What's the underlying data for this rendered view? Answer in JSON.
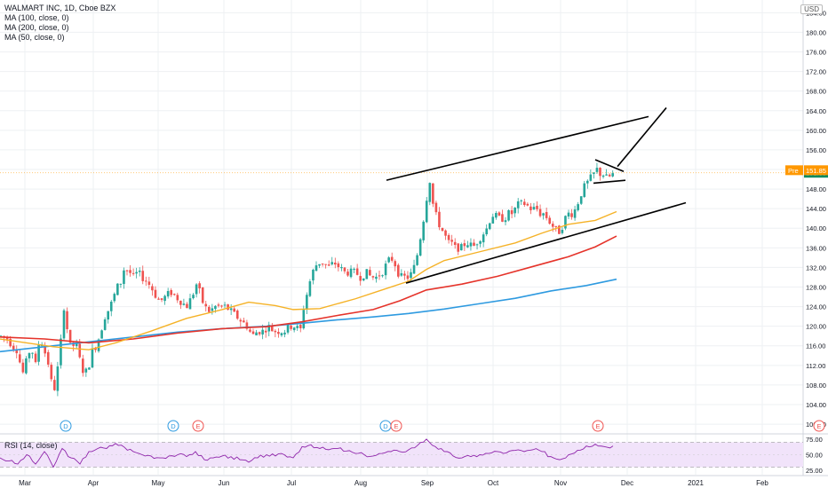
{
  "legend": {
    "title": "WALMART INC, 1D, Cboe BZX",
    "ma100": "MA (100, close, 0)",
    "ma200": "MA (200, close, 0)",
    "ma50": "MA (50, close, 0)"
  },
  "currency": "USD",
  "rsi_label": "RSI (14, close)",
  "colors": {
    "up": "#26a69a",
    "down": "#ef5350",
    "ma50": "#f5b227",
    "ma100": "#e5332a",
    "ma200": "#2e9ae0",
    "rsi": "#8e24aa",
    "rsi_band": "#f1e3fa",
    "pre": "#ff9800",
    "last": "#0e8a5f"
  },
  "chart_data": {
    "type": "candlestick",
    "title": "WALMART INC, 1D, Cboe BZX",
    "x_ticks": [
      "Mar",
      "Apr",
      "May",
      "Jun",
      "Jul",
      "Aug",
      "Sep",
      "Oct",
      "Nov",
      "Dec",
      "2021",
      "Feb"
    ],
    "y_ticks": [
      100,
      104,
      108,
      112,
      116,
      120,
      124,
      128,
      132,
      136,
      140,
      144,
      148,
      152,
      156,
      160,
      164,
      168,
      172,
      176,
      180,
      184
    ],
    "ylim": [
      98.2,
      186.6
    ],
    "last_price_label": "151.33",
    "last_price": 151.33,
    "pre_label": "Pre",
    "pre_price_label": "151.85",
    "pre_price": 151.85,
    "price_points": [
      [
        0,
        118
      ],
      [
        8,
        117.5
      ],
      [
        14,
        116
      ],
      [
        20,
        115
      ],
      [
        25,
        110
      ],
      [
        30,
        113
      ],
      [
        35,
        116
      ],
      [
        40,
        112
      ],
      [
        45,
        118
      ],
      [
        50,
        115
      ],
      [
        55,
        112
      ],
      [
        60,
        106
      ],
      [
        64,
        110
      ],
      [
        68,
        116
      ],
      [
        72,
        124
      ],
      [
        76,
        119
      ],
      [
        80,
        115
      ],
      [
        85,
        117
      ],
      [
        90,
        113
      ],
      [
        95,
        110
      ],
      [
        100,
        112
      ],
      [
        104,
        115
      ],
      [
        108,
        116
      ],
      [
        112,
        118
      ],
      [
        118,
        122
      ],
      [
        124,
        124
      ],
      [
        128,
        126
      ],
      [
        132,
        128
      ],
      [
        136,
        129
      ],
      [
        140,
        132
      ],
      [
        146,
        131
      ],
      [
        150,
        130
      ],
      [
        155,
        131
      ],
      [
        160,
        130
      ],
      [
        166,
        129
      ],
      [
        170,
        128
      ],
      [
        176,
        126
      ],
      [
        180,
        125
      ],
      [
        186,
        126
      ],
      [
        192,
        127
      ],
      [
        198,
        126
      ],
      [
        204,
        125
      ],
      [
        210,
        124
      ],
      [
        216,
        126
      ],
      [
        222,
        129
      ],
      [
        226,
        126
      ],
      [
        230,
        124
      ],
      [
        236,
        123
      ],
      [
        242,
        124
      ],
      [
        248,
        124
      ],
      [
        254,
        124
      ],
      [
        260,
        123
      ],
      [
        266,
        122
      ],
      [
        272,
        121
      ],
      [
        278,
        120
      ],
      [
        284,
        118
      ],
      [
        290,
        119
      ],
      [
        296,
        119
      ],
      [
        302,
        120
      ],
      [
        308,
        119
      ],
      [
        314,
        119
      ],
      [
        320,
        119
      ],
      [
        326,
        120
      ],
      [
        332,
        120
      ],
      [
        338,
        119
      ],
      [
        342,
        124
      ],
      [
        346,
        127
      ],
      [
        350,
        130
      ],
      [
        354,
        132
      ],
      [
        358,
        133
      ],
      [
        364,
        133
      ],
      [
        370,
        132
      ],
      [
        376,
        133
      ],
      [
        382,
        132
      ],
      [
        388,
        131
      ],
      [
        394,
        131
      ],
      [
        400,
        131
      ],
      [
        406,
        130
      ],
      [
        412,
        131
      ],
      [
        418,
        130
      ],
      [
        424,
        130
      ],
      [
        430,
        131
      ],
      [
        436,
        133
      ],
      [
        440,
        134
      ],
      [
        444,
        133
      ],
      [
        448,
        131
      ],
      [
        452,
        130
      ],
      [
        456,
        130
      ],
      [
        460,
        130
      ],
      [
        464,
        131
      ],
      [
        468,
        133
      ],
      [
        472,
        137
      ],
      [
        476,
        141
      ],
      [
        480,
        146
      ],
      [
        484,
        150
      ],
      [
        488,
        144
      ],
      [
        492,
        142
      ],
      [
        496,
        140
      ],
      [
        500,
        139
      ],
      [
        504,
        137
      ],
      [
        508,
        137
      ],
      [
        512,
        136
      ],
      [
        516,
        136
      ],
      [
        520,
        136
      ],
      [
        524,
        137
      ],
      [
        528,
        137
      ],
      [
        532,
        136
      ],
      [
        536,
        137
      ],
      [
        540,
        138
      ],
      [
        544,
        139
      ],
      [
        548,
        140
      ],
      [
        552,
        142
      ],
      [
        556,
        143
      ],
      [
        560,
        142
      ],
      [
        564,
        142
      ],
      [
        568,
        142
      ],
      [
        572,
        143
      ],
      [
        576,
        143
      ],
      [
        580,
        144
      ],
      [
        584,
        145
      ],
      [
        588,
        145
      ],
      [
        592,
        145
      ],
      [
        596,
        144
      ],
      [
        600,
        144
      ],
      [
        604,
        144
      ],
      [
        608,
        143
      ],
      [
        612,
        143
      ],
      [
        616,
        142
      ],
      [
        620,
        141
      ],
      [
        624,
        140
      ],
      [
        628,
        139
      ],
      [
        632,
        140
      ],
      [
        636,
        142
      ],
      [
        640,
        143
      ],
      [
        644,
        143
      ],
      [
        648,
        144
      ],
      [
        652,
        146
      ],
      [
        656,
        148
      ],
      [
        660,
        149
      ],
      [
        664,
        150
      ],
      [
        668,
        151
      ],
      [
        672,
        152
      ],
      [
        676,
        151
      ],
      [
        680,
        151
      ],
      [
        684,
        150
      ],
      [
        688,
        151
      ],
      [
        692,
        151
      ]
    ],
    "ma50": [
      [
        0,
        117.4
      ],
      [
        30,
        116.6
      ],
      [
        60,
        115.8
      ],
      [
        100,
        115.2
      ],
      [
        130,
        116.6
      ],
      [
        170,
        119.0
      ],
      [
        210,
        121.6
      ],
      [
        250,
        123.4
      ],
      [
        280,
        124.9
      ],
      [
        310,
        124.2
      ],
      [
        330,
        123.4
      ],
      [
        360,
        123.6
      ],
      [
        400,
        125.6
      ],
      [
        430,
        127.4
      ],
      [
        460,
        129.2
      ],
      [
        480,
        131.6
      ],
      [
        500,
        133.4
      ],
      [
        540,
        135.2
      ],
      [
        580,
        137.0
      ],
      [
        610,
        139.0
      ],
      [
        640,
        140.8
      ],
      [
        670,
        141.6
      ],
      [
        694,
        143.4
      ]
    ],
    "ma100": [
      [
        0,
        117.8
      ],
      [
        50,
        117.4
      ],
      [
        100,
        116.6
      ],
      [
        150,
        117.4
      ],
      [
        200,
        118.6
      ],
      [
        250,
        119.5
      ],
      [
        300,
        119.9
      ],
      [
        340,
        120.9
      ],
      [
        380,
        122.2
      ],
      [
        420,
        123.4
      ],
      [
        450,
        125.2
      ],
      [
        480,
        127.4
      ],
      [
        520,
        128.6
      ],
      [
        560,
        130.2
      ],
      [
        600,
        132.2
      ],
      [
        640,
        134.2
      ],
      [
        670,
        136.2
      ],
      [
        694,
        138.4
      ]
    ],
    "ma200": [
      [
        0,
        114.8
      ],
      [
        50,
        115.8
      ],
      [
        100,
        116.8
      ],
      [
        150,
        117.8
      ],
      [
        200,
        118.8
      ],
      [
        250,
        119.5
      ],
      [
        300,
        120.0
      ],
      [
        340,
        120.6
      ],
      [
        380,
        121.3
      ],
      [
        420,
        121.9
      ],
      [
        460,
        122.6
      ],
      [
        500,
        123.5
      ],
      [
        540,
        124.6
      ],
      [
        580,
        125.7
      ],
      [
        620,
        127.2
      ],
      [
        660,
        128.3
      ],
      [
        694,
        129.6
      ]
    ],
    "trendlines": [
      {
        "name": "channel-upper",
        "from": [
          435,
          149.8
        ],
        "to": [
          730,
          162.8
        ]
      },
      {
        "name": "channel-lower",
        "from": [
          457,
          128.8
        ],
        "to": [
          772,
          145.2
        ]
      },
      {
        "name": "breakout-target",
        "from": [
          695,
          152.6
        ],
        "to": [
          750,
          164.6
        ]
      },
      {
        "name": "flag-top",
        "from": [
          670,
          154.0
        ],
        "to": [
          702,
          151.6
        ]
      },
      {
        "name": "flag-bottom",
        "from": [
          668,
          149.2
        ],
        "to": [
          704,
          149.8
        ]
      }
    ],
    "events": [
      {
        "label": "D",
        "x": 74
      },
      {
        "label": "D",
        "x": 195
      },
      {
        "label": "E",
        "x": 223
      },
      {
        "label": "D",
        "x": 434
      },
      {
        "label": "E",
        "x": 446
      },
      {
        "label": "E",
        "x": 673
      },
      {
        "label": "E",
        "x": 922
      }
    ],
    "rsi": {
      "ylim": [
        18,
        82
      ],
      "ticks": [
        25,
        50,
        75
      ],
      "band": [
        30,
        70
      ],
      "values": [
        [
          0,
          45
        ],
        [
          10,
          40
        ],
        [
          20,
          35
        ],
        [
          30,
          50
        ],
        [
          40,
          35
        ],
        [
          50,
          55
        ],
        [
          60,
          30
        ],
        [
          70,
          60
        ],
        [
          80,
          45
        ],
        [
          90,
          35
        ],
        [
          100,
          55
        ],
        [
          110,
          60
        ],
        [
          120,
          60
        ],
        [
          130,
          68
        ],
        [
          140,
          62
        ],
        [
          150,
          55
        ],
        [
          160,
          50
        ],
        [
          170,
          48
        ],
        [
          180,
          45
        ],
        [
          190,
          48
        ],
        [
          200,
          50
        ],
        [
          210,
          47
        ],
        [
          220,
          55
        ],
        [
          230,
          42
        ],
        [
          240,
          45
        ],
        [
          250,
          48
        ],
        [
          260,
          47
        ],
        [
          270,
          42
        ],
        [
          280,
          38
        ],
        [
          290,
          45
        ],
        [
          300,
          50
        ],
        [
          310,
          48
        ],
        [
          320,
          50
        ],
        [
          330,
          45
        ],
        [
          340,
          63
        ],
        [
          350,
          66
        ],
        [
          360,
          60
        ],
        [
          370,
          58
        ],
        [
          380,
          60
        ],
        [
          390,
          56
        ],
        [
          400,
          52
        ],
        [
          410,
          50
        ],
        [
          420,
          48
        ],
        [
          430,
          52
        ],
        [
          440,
          55
        ],
        [
          450,
          55
        ],
        [
          460,
          58
        ],
        [
          470,
          65
        ],
        [
          480,
          75
        ],
        [
          490,
          63
        ],
        [
          500,
          55
        ],
        [
          510,
          48
        ],
        [
          520,
          45
        ],
        [
          530,
          47
        ],
        [
          540,
          50
        ],
        [
          550,
          52
        ],
        [
          560,
          55
        ],
        [
          570,
          53
        ],
        [
          580,
          57
        ],
        [
          590,
          55
        ],
        [
          600,
          58
        ],
        [
          610,
          55
        ],
        [
          620,
          47
        ],
        [
          630,
          42
        ],
        [
          640,
          50
        ],
        [
          650,
          57
        ],
        [
          660,
          64
        ],
        [
          670,
          67
        ],
        [
          680,
          63
        ],
        [
          690,
          64
        ]
      ]
    }
  }
}
